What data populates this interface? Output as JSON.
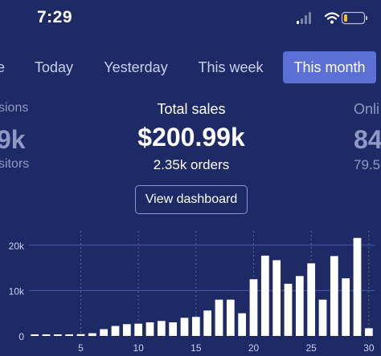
{
  "status_bar": {
    "time": "7:29"
  },
  "tabs": [
    {
      "label": "e",
      "active": false
    },
    {
      "label": "Today",
      "active": false
    },
    {
      "label": "Yesterday",
      "active": false
    },
    {
      "label": "This week",
      "active": false
    },
    {
      "label": "This month",
      "active": true
    }
  ],
  "stats": {
    "left": {
      "label": "sions",
      "value": "9k",
      "sub": "sitors"
    },
    "center": {
      "label": "Total sales",
      "value": "$200.99k",
      "sub": "2.35k orders"
    },
    "right": {
      "label": "Onli",
      "value": "84",
      "sub": "79.5"
    }
  },
  "dashboard_button": "View dashboard",
  "colors": {
    "background": "#1e2a66",
    "accent": "#5b6fd6",
    "bar": "#ffffff",
    "gridline": "#4a58b0"
  },
  "chart_data": {
    "type": "bar",
    "x": [
      1,
      2,
      3,
      4,
      5,
      6,
      7,
      8,
      9,
      10,
      11,
      12,
      13,
      14,
      15,
      16,
      17,
      18,
      19,
      20,
      21,
      22,
      23,
      24,
      25,
      26,
      27,
      28,
      29,
      30
    ],
    "values": [
      200,
      250,
      250,
      300,
      400,
      600,
      1500,
      2200,
      2600,
      2700,
      3000,
      3300,
      3000,
      4000,
      4200,
      5600,
      8000,
      8000,
      5000,
      12500,
      17700,
      16700,
      11500,
      13200,
      16000,
      8000,
      17600,
      12700,
      21600,
      1700
    ],
    "xticks": [
      5,
      10,
      15,
      20,
      25,
      30
    ],
    "yticks": [
      0,
      10000,
      20000
    ],
    "ytick_labels": [
      "0",
      "10k",
      "20k"
    ],
    "ylim": [
      0,
      23500
    ],
    "grid": "horizontal"
  }
}
